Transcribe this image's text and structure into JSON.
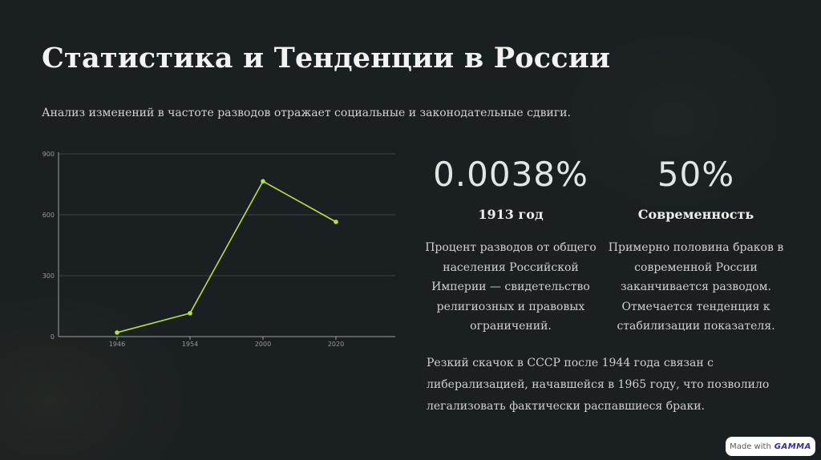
{
  "slide": {
    "title": "Статистика и Тенденции в России",
    "subtitle": "Анализ изменений в частоте разводов отражает социальные и законодательные сдвиги."
  },
  "stats": [
    {
      "value": "0.0038%",
      "heading": "1913 год",
      "description": "Процент разводов от общего населения Российской Империи — свидетельство религиозных и правовых ограничений."
    },
    {
      "value": "50%",
      "heading": "Современность",
      "description": "Примерно половина браков в современной России заканчивается разводом. Отмечается тенденция к стабилизации показателя."
    }
  ],
  "note": "Резкий скачок в СССР после 1944 года связан с либерализацией, начавшейся в 1965 году, что позволило легализовать фактически распавшиеся браки.",
  "badge": {
    "prefix": "Made with",
    "brand": "GAMMA"
  },
  "colors": {
    "background": "#1a1f22",
    "line": "#b5e33c",
    "grid": "#3a4145",
    "axis": "#9aa3a6"
  },
  "chart_data": {
    "type": "line",
    "categories": [
      "1946",
      "1954",
      "2000",
      "2020"
    ],
    "series": [
      {
        "values": [
          20,
          115,
          765,
          565
        ]
      }
    ],
    "yticks": [
      0,
      300,
      600,
      900
    ],
    "ylim": [
      0,
      900
    ],
    "xlabel": "",
    "ylabel": "",
    "grid": true
  }
}
